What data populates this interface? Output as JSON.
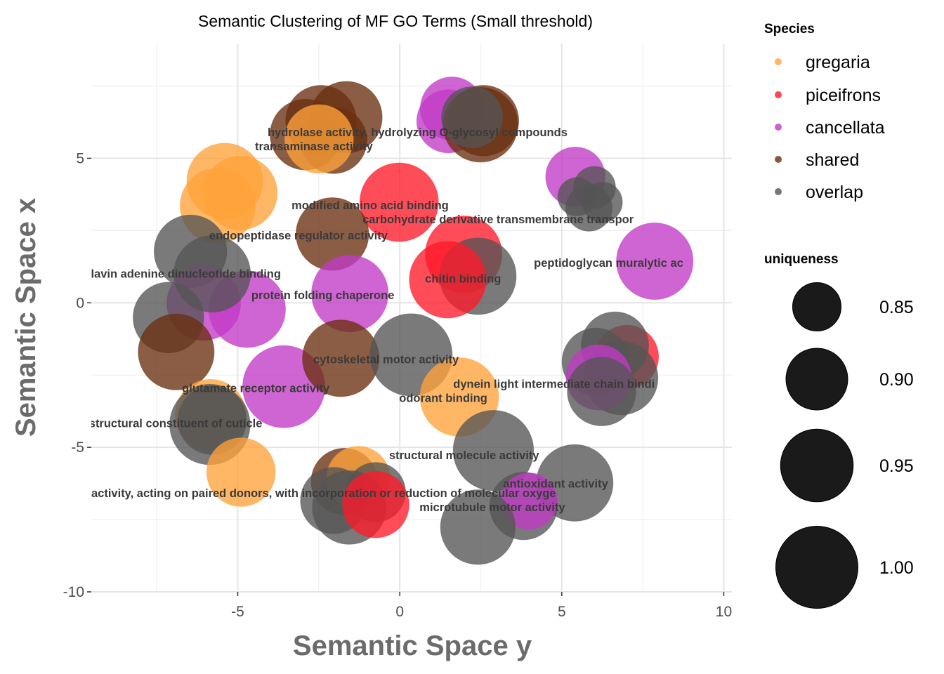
{
  "chart_data": {
    "type": "scatter",
    "title": "Semantic Clustering of MF GO Terms (Small threshold)",
    "xlabel": "Semantic Space y",
    "ylabel": "Semantic Space x",
    "xlim": [
      -9.52,
      10.25
    ],
    "ylim": [
      -10,
      8.97
    ],
    "xticks": [
      -5,
      0,
      5,
      10
    ],
    "yticks": [
      -10,
      -5,
      0,
      5
    ],
    "grid": true,
    "legend_placement": "right",
    "colors": {
      "gregaria": "#FFA33A",
      "piceifrons": "#FF1A2A",
      "cancellata": "#C23AC6",
      "shared": "#6A3010",
      "overlap": "#555555"
    },
    "legend": {
      "species_title": "Species",
      "species": [
        "gregaria",
        "piceifrons",
        "cancellata",
        "shared",
        "overlap"
      ],
      "size_title": "uniqueness",
      "size_values": [
        0.85,
        0.9,
        0.95,
        1.0
      ],
      "size_labels": [
        "0.85",
        "0.90",
        "0.95",
        "1.00"
      ]
    },
    "points": [
      {
        "x": -2.91,
        "y": 5.82,
        "u": 0.94,
        "s": "shared"
      },
      {
        "x": -2.43,
        "y": 6.3,
        "u": 0.94,
        "s": "shared"
      },
      {
        "x": -1.65,
        "y": 6.42,
        "u": 0.945,
        "s": "shared"
      },
      {
        "x": -2.04,
        "y": 5.62,
        "u": 0.92,
        "s": "shared"
      },
      {
        "x": -2.49,
        "y": 5.67,
        "u": 0.93,
        "s": "gregaria"
      },
      {
        "x": -5.4,
        "y": 4.21,
        "u": 0.966,
        "s": "gregaria"
      },
      {
        "x": -4.92,
        "y": 3.8,
        "u": 0.955,
        "s": "gregaria"
      },
      {
        "x": -5.62,
        "y": 3.36,
        "u": 0.962,
        "s": "gregaria"
      },
      {
        "x": -0.02,
        "y": 3.48,
        "u": 0.98,
        "s": "piceifrons"
      },
      {
        "x": -2.08,
        "y": 2.38,
        "u": 0.95,
        "s": "shared"
      },
      {
        "x": -6.46,
        "y": 1.78,
        "u": 0.95,
        "s": "overlap"
      },
      {
        "x": -1.54,
        "y": 0.32,
        "u": 0.97,
        "s": "cancellata"
      },
      {
        "x": -6.05,
        "y": -0.02,
        "u": 0.955,
        "s": "cancellata"
      },
      {
        "x": -4.71,
        "y": -0.22,
        "u": 0.97,
        "s": "cancellata"
      },
      {
        "x": -5.79,
        "y": 1.0,
        "u": 0.97,
        "s": "overlap"
      },
      {
        "x": -7.14,
        "y": -0.51,
        "u": 0.94,
        "s": "overlap"
      },
      {
        "x": -6.9,
        "y": -1.7,
        "u": 0.966,
        "s": "shared"
      },
      {
        "x": -3.58,
        "y": -2.9,
        "u": 1.0,
        "s": "cancellata"
      },
      {
        "x": -1.82,
        "y": -1.92,
        "u": 0.97,
        "s": "shared"
      },
      {
        "x": -5.84,
        "y": -3.87,
        "u": 0.94,
        "s": "gregaria"
      },
      {
        "x": -5.86,
        "y": -4.21,
        "u": 0.99,
        "s": "overlap"
      },
      {
        "x": -5.79,
        "y": -4.06,
        "u": 0.93,
        "s": "overlap"
      },
      {
        "x": -4.9,
        "y": -5.86,
        "u": 0.93,
        "s": "gregaria"
      },
      {
        "x": -1.71,
        "y": -6.18,
        "u": 0.92,
        "s": "shared"
      },
      {
        "x": -1.28,
        "y": -6.06,
        "u": 0.906,
        "s": "gregaria"
      },
      {
        "x": -2.04,
        "y": -6.84,
        "u": 0.92,
        "s": "overlap"
      },
      {
        "x": -1.56,
        "y": -7.08,
        "u": 0.955,
        "s": "overlap"
      },
      {
        "x": -0.74,
        "y": -6.55,
        "u": 0.89,
        "s": "overlap"
      },
      {
        "x": -0.74,
        "y": -6.98,
        "u": 0.92,
        "s": "piceifrons"
      },
      {
        "x": 0.35,
        "y": -1.8,
        "u": 1.0,
        "s": "overlap"
      },
      {
        "x": 1.97,
        "y": 1.68,
        "u": 0.97,
        "s": "piceifrons"
      },
      {
        "x": 2.41,
        "y": 0.92,
        "u": 0.97,
        "s": "overlap"
      },
      {
        "x": 1.48,
        "y": 0.8,
        "u": 0.97,
        "s": "piceifrons"
      },
      {
        "x": 1.61,
        "y": 6.72,
        "u": 0.906,
        "s": "cancellata"
      },
      {
        "x": 1.5,
        "y": 6.28,
        "u": 0.906,
        "s": "cancellata"
      },
      {
        "x": 2.58,
        "y": 6.3,
        "u": 0.94,
        "s": "shared"
      },
      {
        "x": 2.49,
        "y": 6.16,
        "u": 0.96,
        "s": "shared"
      },
      {
        "x": 2.23,
        "y": 6.42,
        "u": 0.897,
        "s": "overlap"
      },
      {
        "x": 5.42,
        "y": 4.36,
        "u": 0.89,
        "s": "cancellata"
      },
      {
        "x": 6.01,
        "y": 3.99,
        "u": 0.83,
        "s": "overlap"
      },
      {
        "x": 5.47,
        "y": 3.67,
        "u": 0.82,
        "s": "overlap"
      },
      {
        "x": 6.25,
        "y": 3.48,
        "u": 0.825,
        "s": "overlap"
      },
      {
        "x": 5.84,
        "y": 3.28,
        "u": 0.843,
        "s": "overlap"
      },
      {
        "x": 7.87,
        "y": 1.44,
        "u": 0.97,
        "s": "cancellata"
      },
      {
        "x": 7.01,
        "y": -1.87,
        "u": 0.906,
        "s": "piceifrons"
      },
      {
        "x": 6.64,
        "y": -1.48,
        "u": 0.925,
        "s": "overlap"
      },
      {
        "x": 6.05,
        "y": -2.04,
        "u": 0.925,
        "s": "overlap"
      },
      {
        "x": 6.83,
        "y": -2.6,
        "u": 0.955,
        "s": "overlap"
      },
      {
        "x": 6.14,
        "y": -2.58,
        "u": 0.915,
        "s": "cancellata"
      },
      {
        "x": 6.23,
        "y": -3.07,
        "u": 0.93,
        "s": "overlap"
      },
      {
        "x": 1.84,
        "y": -3.26,
        "u": 0.98,
        "s": "gregaria"
      },
      {
        "x": 2.89,
        "y": -5.11,
        "u": 0.99,
        "s": "overlap"
      },
      {
        "x": 5.4,
        "y": -6.23,
        "u": 0.97,
        "s": "overlap"
      },
      {
        "x": 3.82,
        "y": -7.03,
        "u": 0.925,
        "s": "overlap"
      },
      {
        "x": 3.99,
        "y": -6.86,
        "u": 0.878,
        "s": "cancellata"
      },
      {
        "x": 2.41,
        "y": -7.76,
        "u": 0.96,
        "s": "overlap"
      }
    ],
    "labels": [
      {
        "text": "hydrolase activity, hydrolyzing O-glycosyl compounds",
        "x": -4.08,
        "y": 5.91
      },
      {
        "text": "transaminase activity",
        "x": -4.47,
        "y": 5.67
      },
      {
        "text": "modified amino acid binding",
        "x": -3.34,
        "y": 3.38
      },
      {
        "text": "carbohydrate derivative transmembrane transpor",
        "x": -1.15,
        "y": 3.26
      },
      {
        "text": "endopeptidase regulator activity",
        "x": -5.88,
        "y": 2.34
      },
      {
        "text": "flavin adenine dinucleotide binding",
        "x": -9.65,
        "y": 1.02
      },
      {
        "text": "protein folding chaperone",
        "x": -4.58,
        "y": 0.27
      },
      {
        "text": "chitin binding",
        "x": 0.78,
        "y": 0.85
      },
      {
        "text": "peptidoglycan muralytic ac",
        "x": 4.14,
        "y": 1.39
      },
      {
        "text": "cytoskeletal motor activity",
        "x": -2.67,
        "y": -1.95
      },
      {
        "text": "glutamate receptor activity",
        "x": -6.72,
        "y": -2.94
      },
      {
        "text": "odorant binding",
        "x": -0.02,
        "y": -3.28
      },
      {
        "text": "dynein light intermediate chain bindi",
        "x": 1.65,
        "y": -3.09
      },
      {
        "text": "structural constituent of cuticle",
        "x": -9.59,
        "y": -4.16
      },
      {
        "text": "structural molecule activity",
        "x": -0.33,
        "y": -5.26
      },
      {
        "text": "antioxidant activity",
        "x": 3.19,
        "y": -6.25
      },
      {
        "text": "microtubule motor activity",
        "x": 0.61,
        "y": -7.06
      },
      {
        "text": "activity, acting on paired donors, with incorporation or reduction of molecular oxyge",
        "x": -9.52,
        "y": -6.96
      }
    ]
  }
}
